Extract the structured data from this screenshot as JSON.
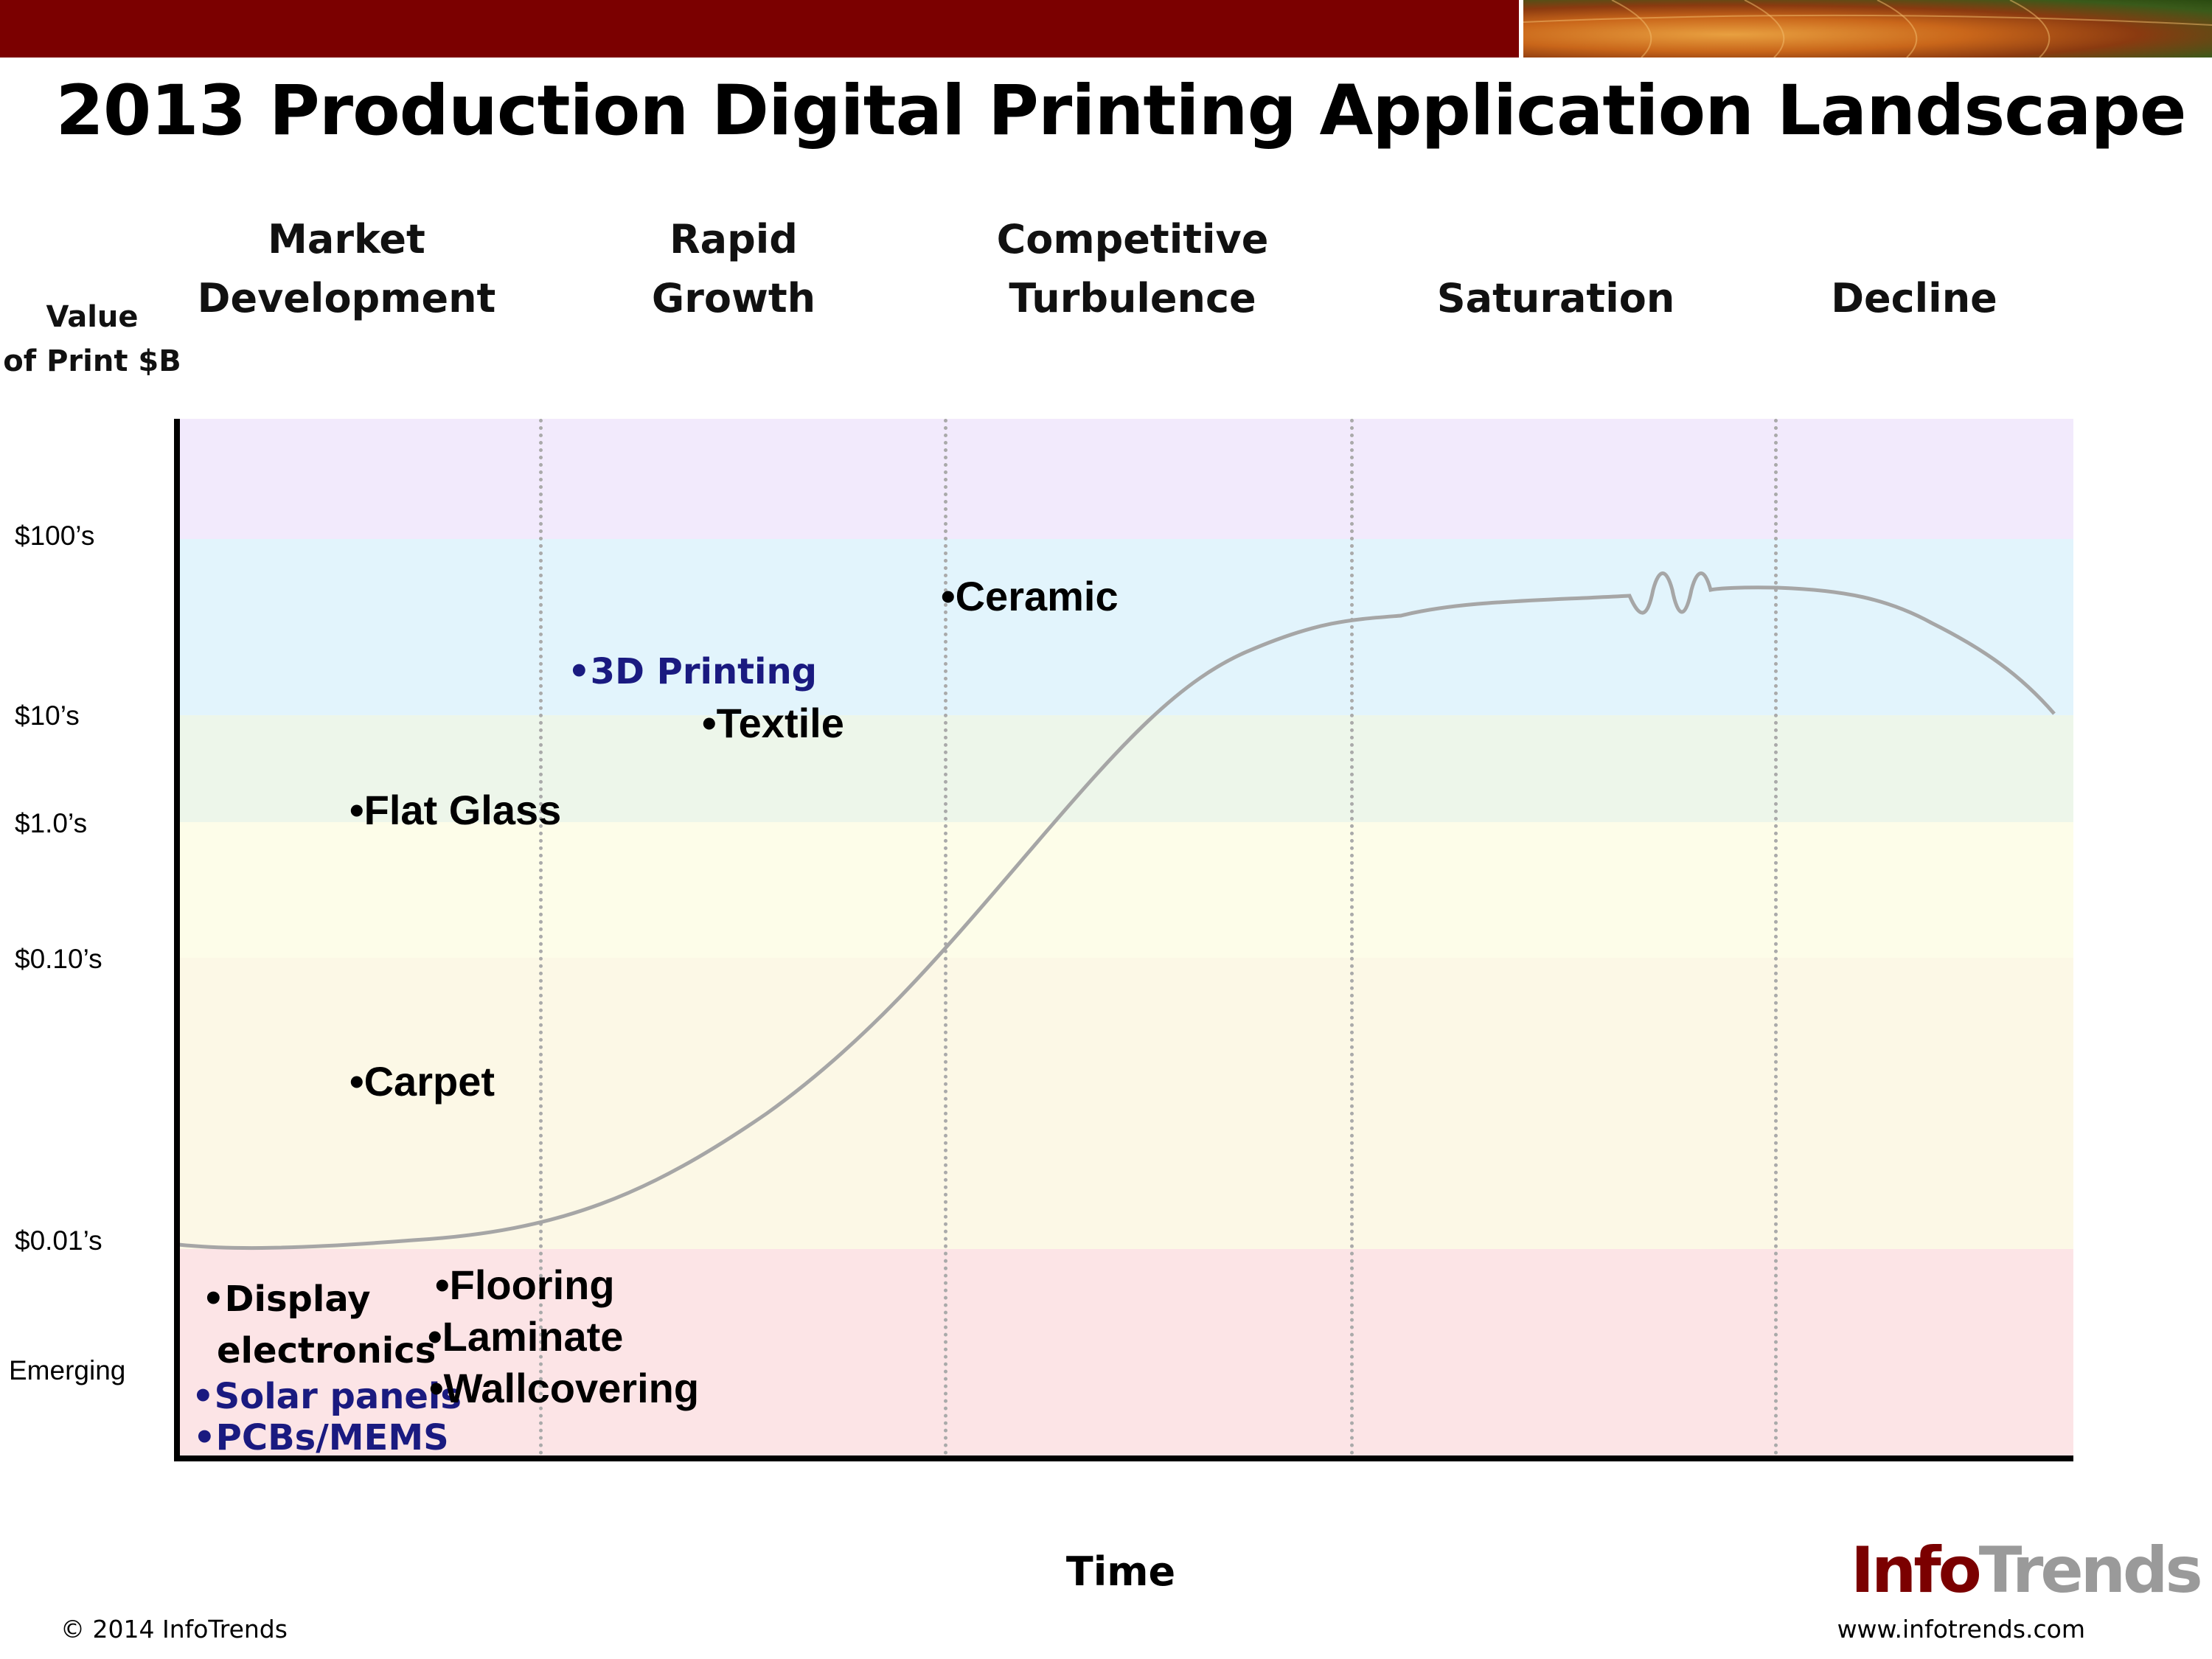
{
  "title": "2013 Production Digital Printing Application Landscape",
  "phases": [
    {
      "label": "Market\nDevelopment"
    },
    {
      "label": "Rapid\nGrowth"
    },
    {
      "label": "Competitive\nTurbulence"
    },
    {
      "label": "Saturation"
    },
    {
      "label": "Decline"
    }
  ],
  "y_axis": {
    "title": "Value\nof Print $B",
    "ticks": [
      "$100’s",
      "$10’s",
      "$1.0’s",
      "$0.10’s",
      "$0.01’s",
      "Emerging"
    ]
  },
  "x_axis": {
    "label": "Time"
  },
  "bands": [
    {
      "color": "#f2eafc"
    },
    {
      "color": "#e2f4fc"
    },
    {
      "color": "#edf6ea"
    },
    {
      "color": "#fdfde9"
    },
    {
      "color": "#fcf8e6"
    },
    {
      "color": "#fce4e6"
    }
  ],
  "applications": [
    {
      "text": "•Ceramic"
    },
    {
      "text": "•3D Printing"
    },
    {
      "text": "•Textile"
    },
    {
      "text": "•Flat Glass"
    },
    {
      "text": "•Carpet"
    },
    {
      "text": "•Display"
    },
    {
      "text": "electronics"
    },
    {
      "text": "•Solar panels"
    },
    {
      "text": "•PCBs/MEMS"
    },
    {
      "text": "•Flooring"
    },
    {
      "text": "•Laminate"
    },
    {
      "text": "•Wallcovering"
    }
  ],
  "colors": {
    "header_bar": "#7b0000",
    "curve": "#a6a6a6",
    "highlight_text": "#1a1a80"
  },
  "footer": {
    "copyright": "© 2014 InfoTrends",
    "website": "www.infotrends.com",
    "logo_info": "Info",
    "logo_trends": "Trends"
  }
}
